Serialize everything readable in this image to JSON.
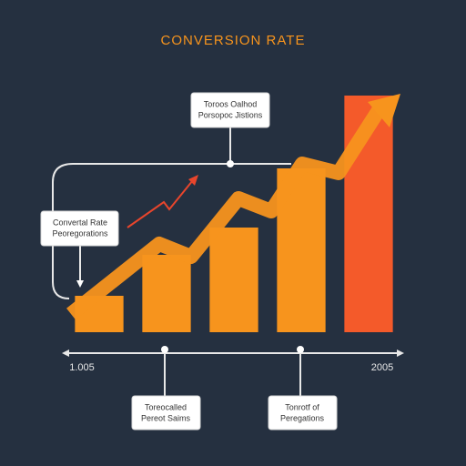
{
  "chart_data": {
    "type": "bar",
    "title": "CONVERSION RATE",
    "categories": [
      null,
      null,
      null,
      null,
      null
    ],
    "values": [
      40,
      85,
      115,
      180,
      260
    ],
    "colors": [
      "#f7941d",
      "#f7941d",
      "#f7941d",
      "#f7941d",
      "#f45a2a"
    ],
    "ylim": [
      0,
      270
    ],
    "axis_end_labels": [
      "1.005",
      "2005"
    ],
    "callouts": [
      [
        "Toroos Oalhod",
        "Porsopoc Jistions"
      ],
      [
        "Convertal Rate",
        "Peoregorations"
      ],
      [
        "Toreocalled",
        "Pereot Saims"
      ],
      [
        "Tonrotf of",
        "Peregations"
      ]
    ]
  }
}
